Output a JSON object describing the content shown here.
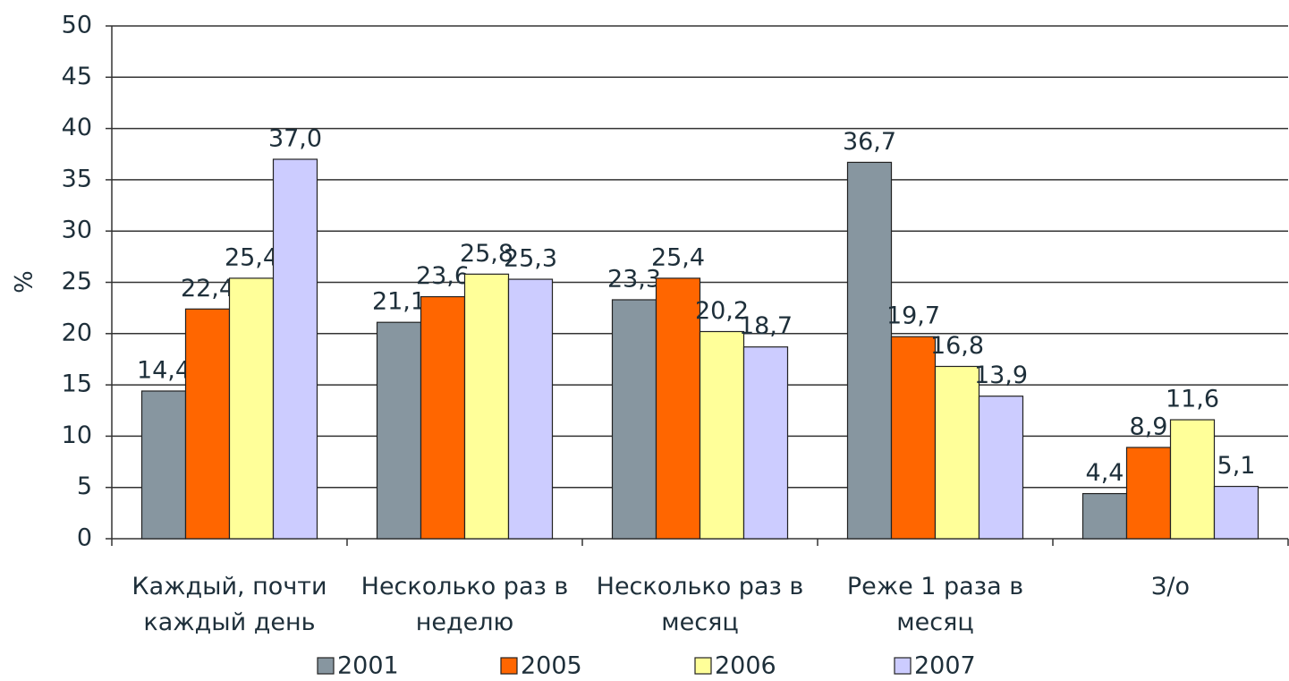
{
  "chart_data": {
    "type": "bar",
    "y_label": "%",
    "categories": [
      "Каждый, почти\nкаждый день",
      "Несколько раз в\nнеделю",
      "Несколько раз в\nмесяц",
      "Реже 1 раза в\nмесяц",
      "З/о"
    ],
    "series": [
      {
        "name": "2001",
        "color": "#8796a0",
        "values": [
          14.4,
          21.1,
          23.3,
          36.7,
          4.4
        ],
        "value_labels": [
          "14,4",
          "21,1",
          "23,3",
          "36,7",
          "4,4"
        ]
      },
      {
        "name": "2005",
        "color": "#ff6600",
        "values": [
          22.4,
          23.6,
          25.4,
          19.7,
          8.9
        ],
        "value_labels": [
          "22,4",
          "23,6",
          "25,4",
          "19,7",
          "8,9"
        ]
      },
      {
        "name": "2006",
        "color": "#ffff99",
        "values": [
          25.4,
          25.8,
          20.2,
          16.8,
          11.6
        ],
        "value_labels": [
          "25,4",
          "25,8",
          "20,2",
          "16,8",
          "11,6"
        ]
      },
      {
        "name": "2007",
        "color": "#ccccff",
        "values": [
          37.0,
          25.3,
          18.7,
          13.9,
          5.1
        ],
        "value_labels": [
          "37,0",
          "25,3",
          "18,7",
          "13,9",
          "5,1"
        ]
      }
    ],
    "ylim": [
      0,
      50
    ],
    "yticks": [
      0,
      5,
      10,
      15,
      20,
      25,
      30,
      35,
      40,
      45,
      50
    ],
    "grid": true,
    "legend": "bottom"
  }
}
